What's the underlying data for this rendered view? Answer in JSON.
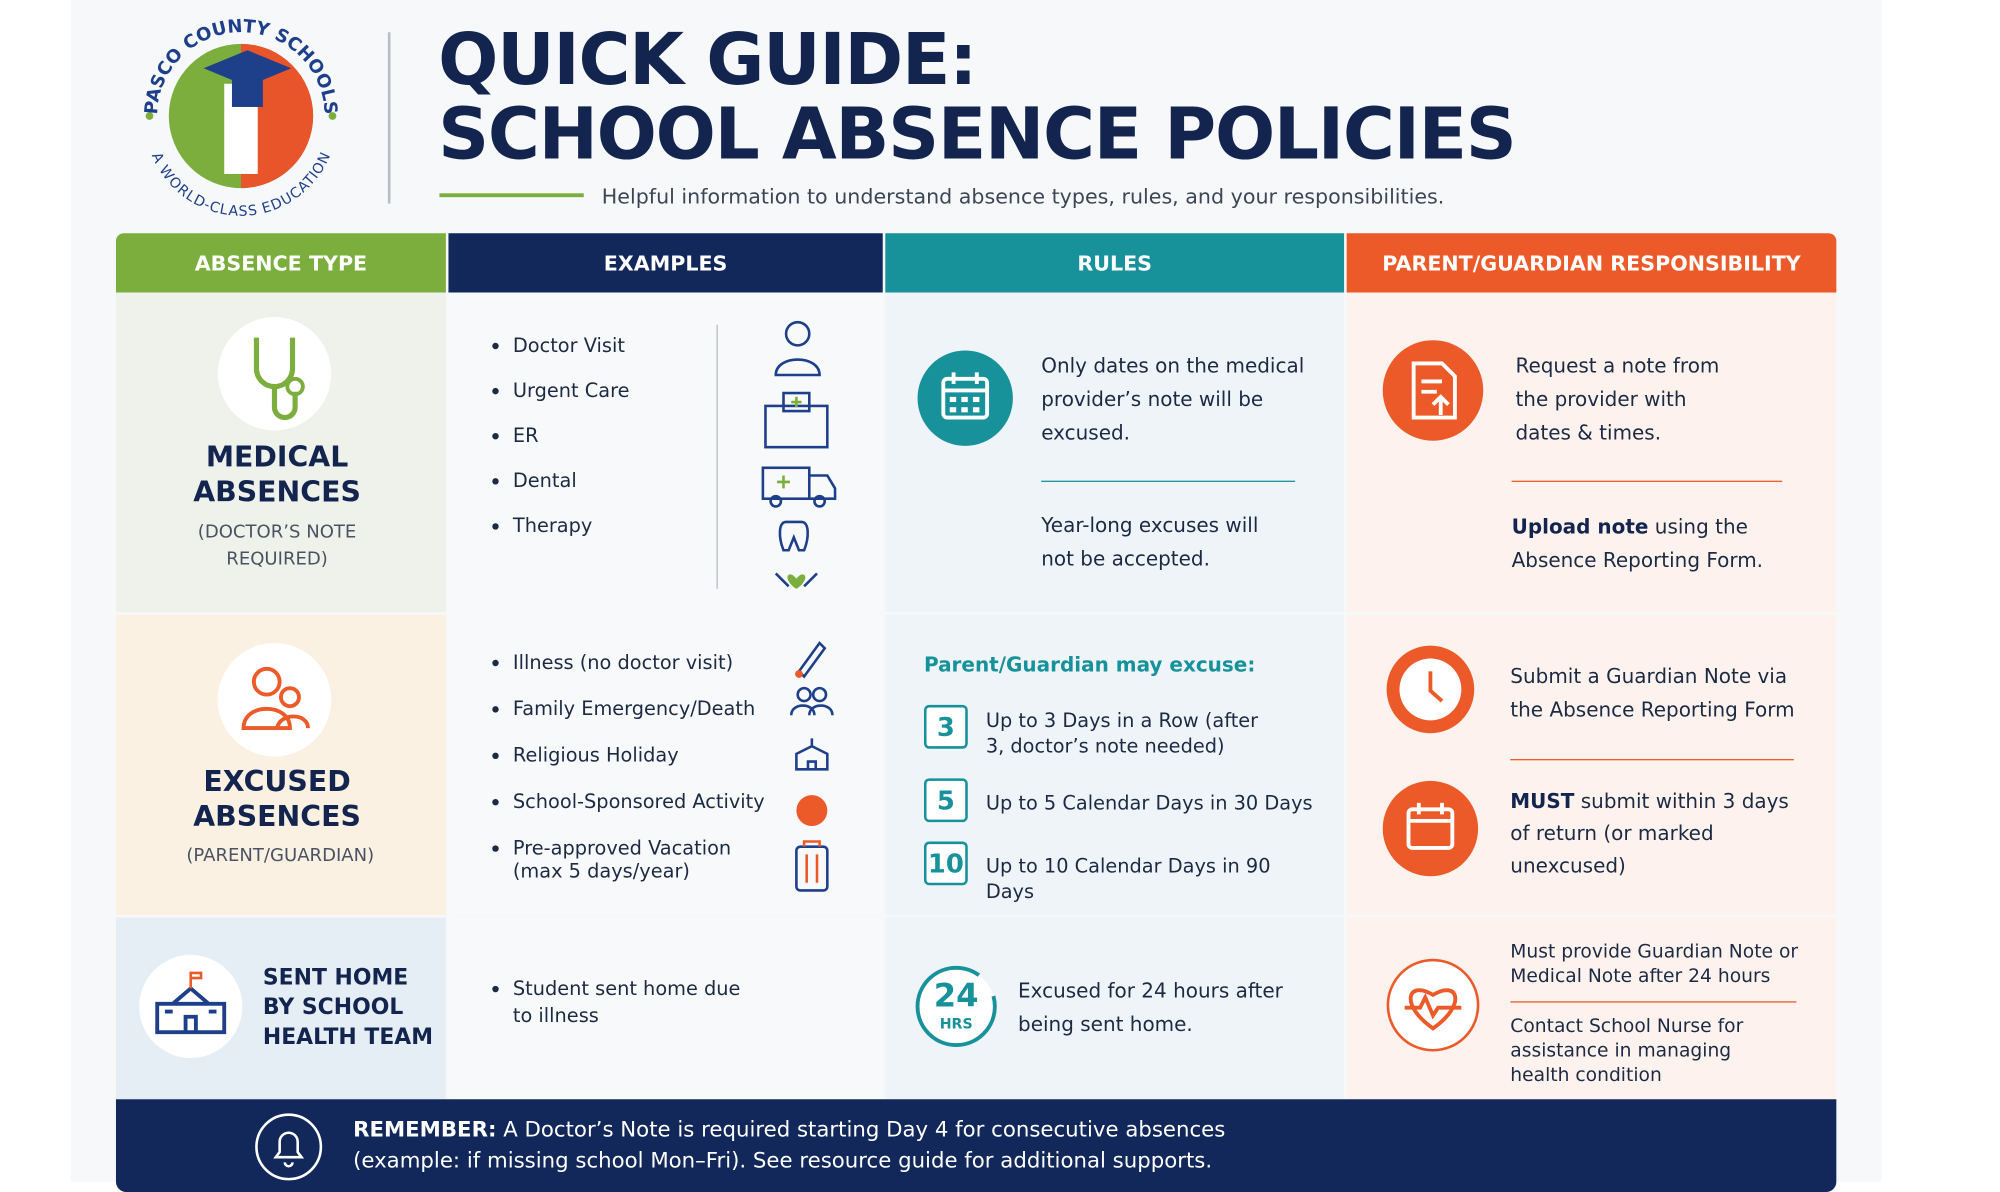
{
  "header": {
    "org_name": "PASCO COUNTY SCHOOLS",
    "org_tagline": "A WORLD-CLASS EDUCATION",
    "title_line1": "QUICK GUIDE:",
    "title_line2": "SCHOOL ABSENCE POLICIES",
    "subtitle": "Helpful information to understand absence types, rules, and your responsibilities."
  },
  "table": {
    "columns": [
      "ABSENCE TYPE",
      "EXAMPLES",
      "RULES",
      "PARENT/GUARDIAN RESPONSIBILITY"
    ],
    "rows": [
      {
        "type_title": "MEDICAL ABSENCES",
        "type_note": "(DOCTOR’S NOTE REQUIRED)",
        "examples": [
          "Doctor Visit",
          "Urgent Care",
          "ER",
          "Dental",
          "Therapy"
        ],
        "rules": [
          "Only dates on the medical provider’s note will be excused.",
          "Year-long excuses will not be accepted."
        ],
        "responsibilities": [
          {
            "bold": "",
            "text": "Request a note from the provider with dates & times."
          },
          {
            "bold": "Upload note",
            "text": " using the Absence Reporting Form."
          }
        ]
      },
      {
        "type_title": "EXCUSED ABSENCES",
        "type_note": "(PARENT/GUARDIAN)",
        "examples": [
          "Illness (no doctor visit)",
          "Family Emergency/Death",
          "Religious Holiday",
          "School-Sponsored Activity",
          "Pre-approved Vacation (max 5 days/year)"
        ],
        "rules_intro": "Parent/Guardian may excuse:",
        "rules": [
          {
            "number": 3,
            "text": "Up to 3 Days in a Row (after 3, doctor’s note needed)"
          },
          {
            "number": 5,
            "text": "Up to 5 Calendar Days in 30 Days"
          },
          {
            "number": 10,
            "text": "Up to 10 Calendar Days in 90 Days"
          }
        ],
        "responsibilities": [
          {
            "bold": "",
            "text": "Submit a Guardian Note via the Absence Reporting Form"
          },
          {
            "bold": "MUST",
            "text": " submit within 3 days of return (or marked unexcused)"
          }
        ]
      },
      {
        "type_title": "SENT HOME BY SCHOOL HEALTH TEAM",
        "examples": [
          "Student sent home due to illness"
        ],
        "rule_badge": {
          "number": 24,
          "unit": "HRS"
        },
        "rules": [
          "Excused for 24 hours after being sent home."
        ],
        "responsibilities": [
          {
            "bold": "",
            "text": "Must provide Guardian Note or Medical Note after 24 hours"
          },
          {
            "bold": "",
            "text": "Contact School Nurse for assistance in managing health condition"
          }
        ]
      }
    ]
  },
  "footer": {
    "label": "REMEMBER:",
    "text": " A Doctor’s Note is required starting Day 4 for consecutive absences (example: if missing school Mon–Fri). See resource guide for additional supports."
  }
}
